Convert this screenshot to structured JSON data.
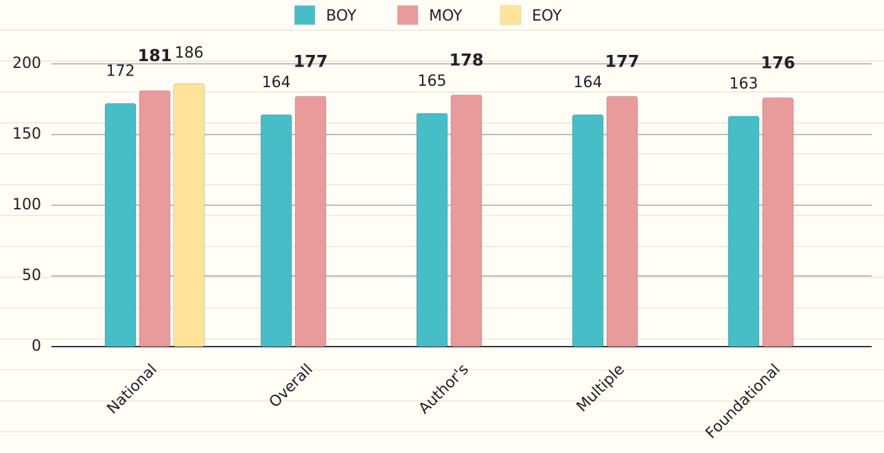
{
  "chart_data": {
    "type": "bar",
    "categories": [
      "National",
      "Overall",
      "Author's",
      "Multiple",
      "Foundational"
    ],
    "series": [
      {
        "name": "BOY",
        "color": "#47bdc8",
        "values": [
          172,
          164,
          165,
          164,
          163
        ]
      },
      {
        "name": "MOY",
        "color": "#e99a9a",
        "values": [
          181,
          177,
          178,
          177,
          176
        ]
      },
      {
        "name": "EOY",
        "color": "#fee399",
        "values": [
          186,
          null,
          null,
          null,
          null
        ]
      }
    ],
    "ylim": [
      0,
      200
    ],
    "yticks": [
      0,
      50,
      100,
      150,
      200
    ],
    "grid": true,
    "legend": "top"
  }
}
